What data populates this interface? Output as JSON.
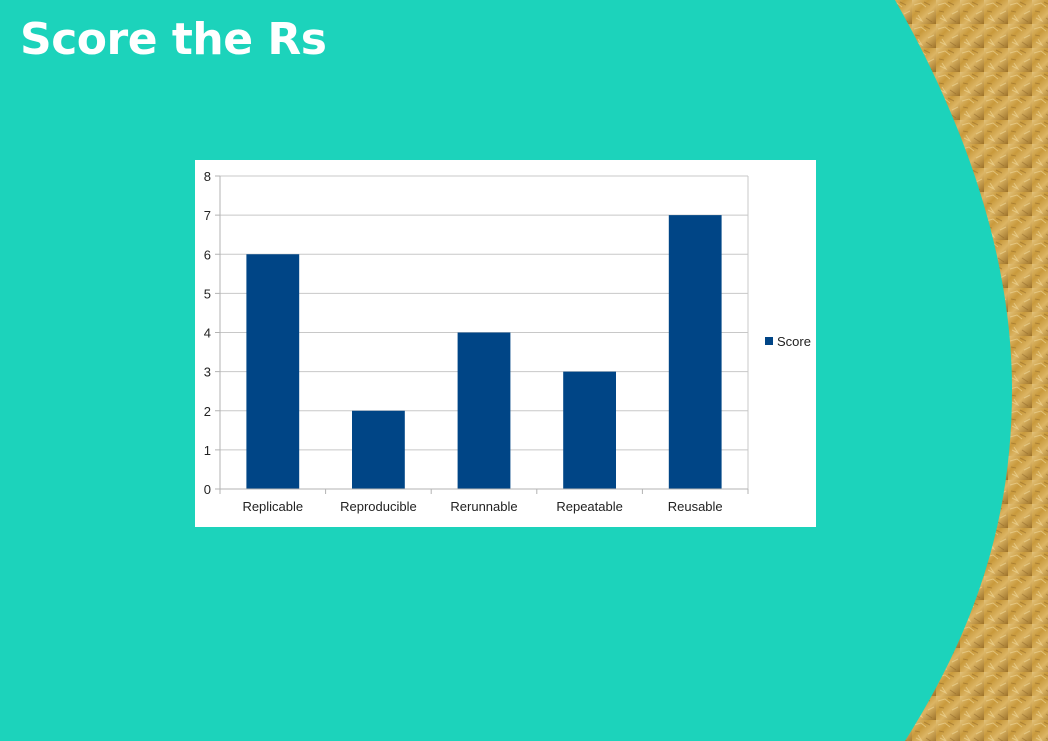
{
  "slide": {
    "title": "Score the Rs",
    "colors": {
      "background": "#1cd3bb",
      "gold": "#c99a3c",
      "gold_light": "#e3c27a",
      "gold_dark": "#9c7128"
    }
  },
  "chart_data": {
    "type": "bar",
    "categories": [
      "Replicable",
      "Reproducible",
      "Rerunnable",
      "Repeatable",
      "Reusable"
    ],
    "series": [
      {
        "name": "Score",
        "values": [
          6,
          2,
          4,
          3,
          7
        ],
        "color": "#004586"
      }
    ],
    "ylim": [
      0,
      8
    ],
    "yticks": [
      "0",
      "1",
      "2",
      "3",
      "4",
      "5",
      "6",
      "7",
      "8"
    ],
    "grid": true,
    "legend_position": "right",
    "title": "",
    "xlabel": "",
    "ylabel": ""
  }
}
